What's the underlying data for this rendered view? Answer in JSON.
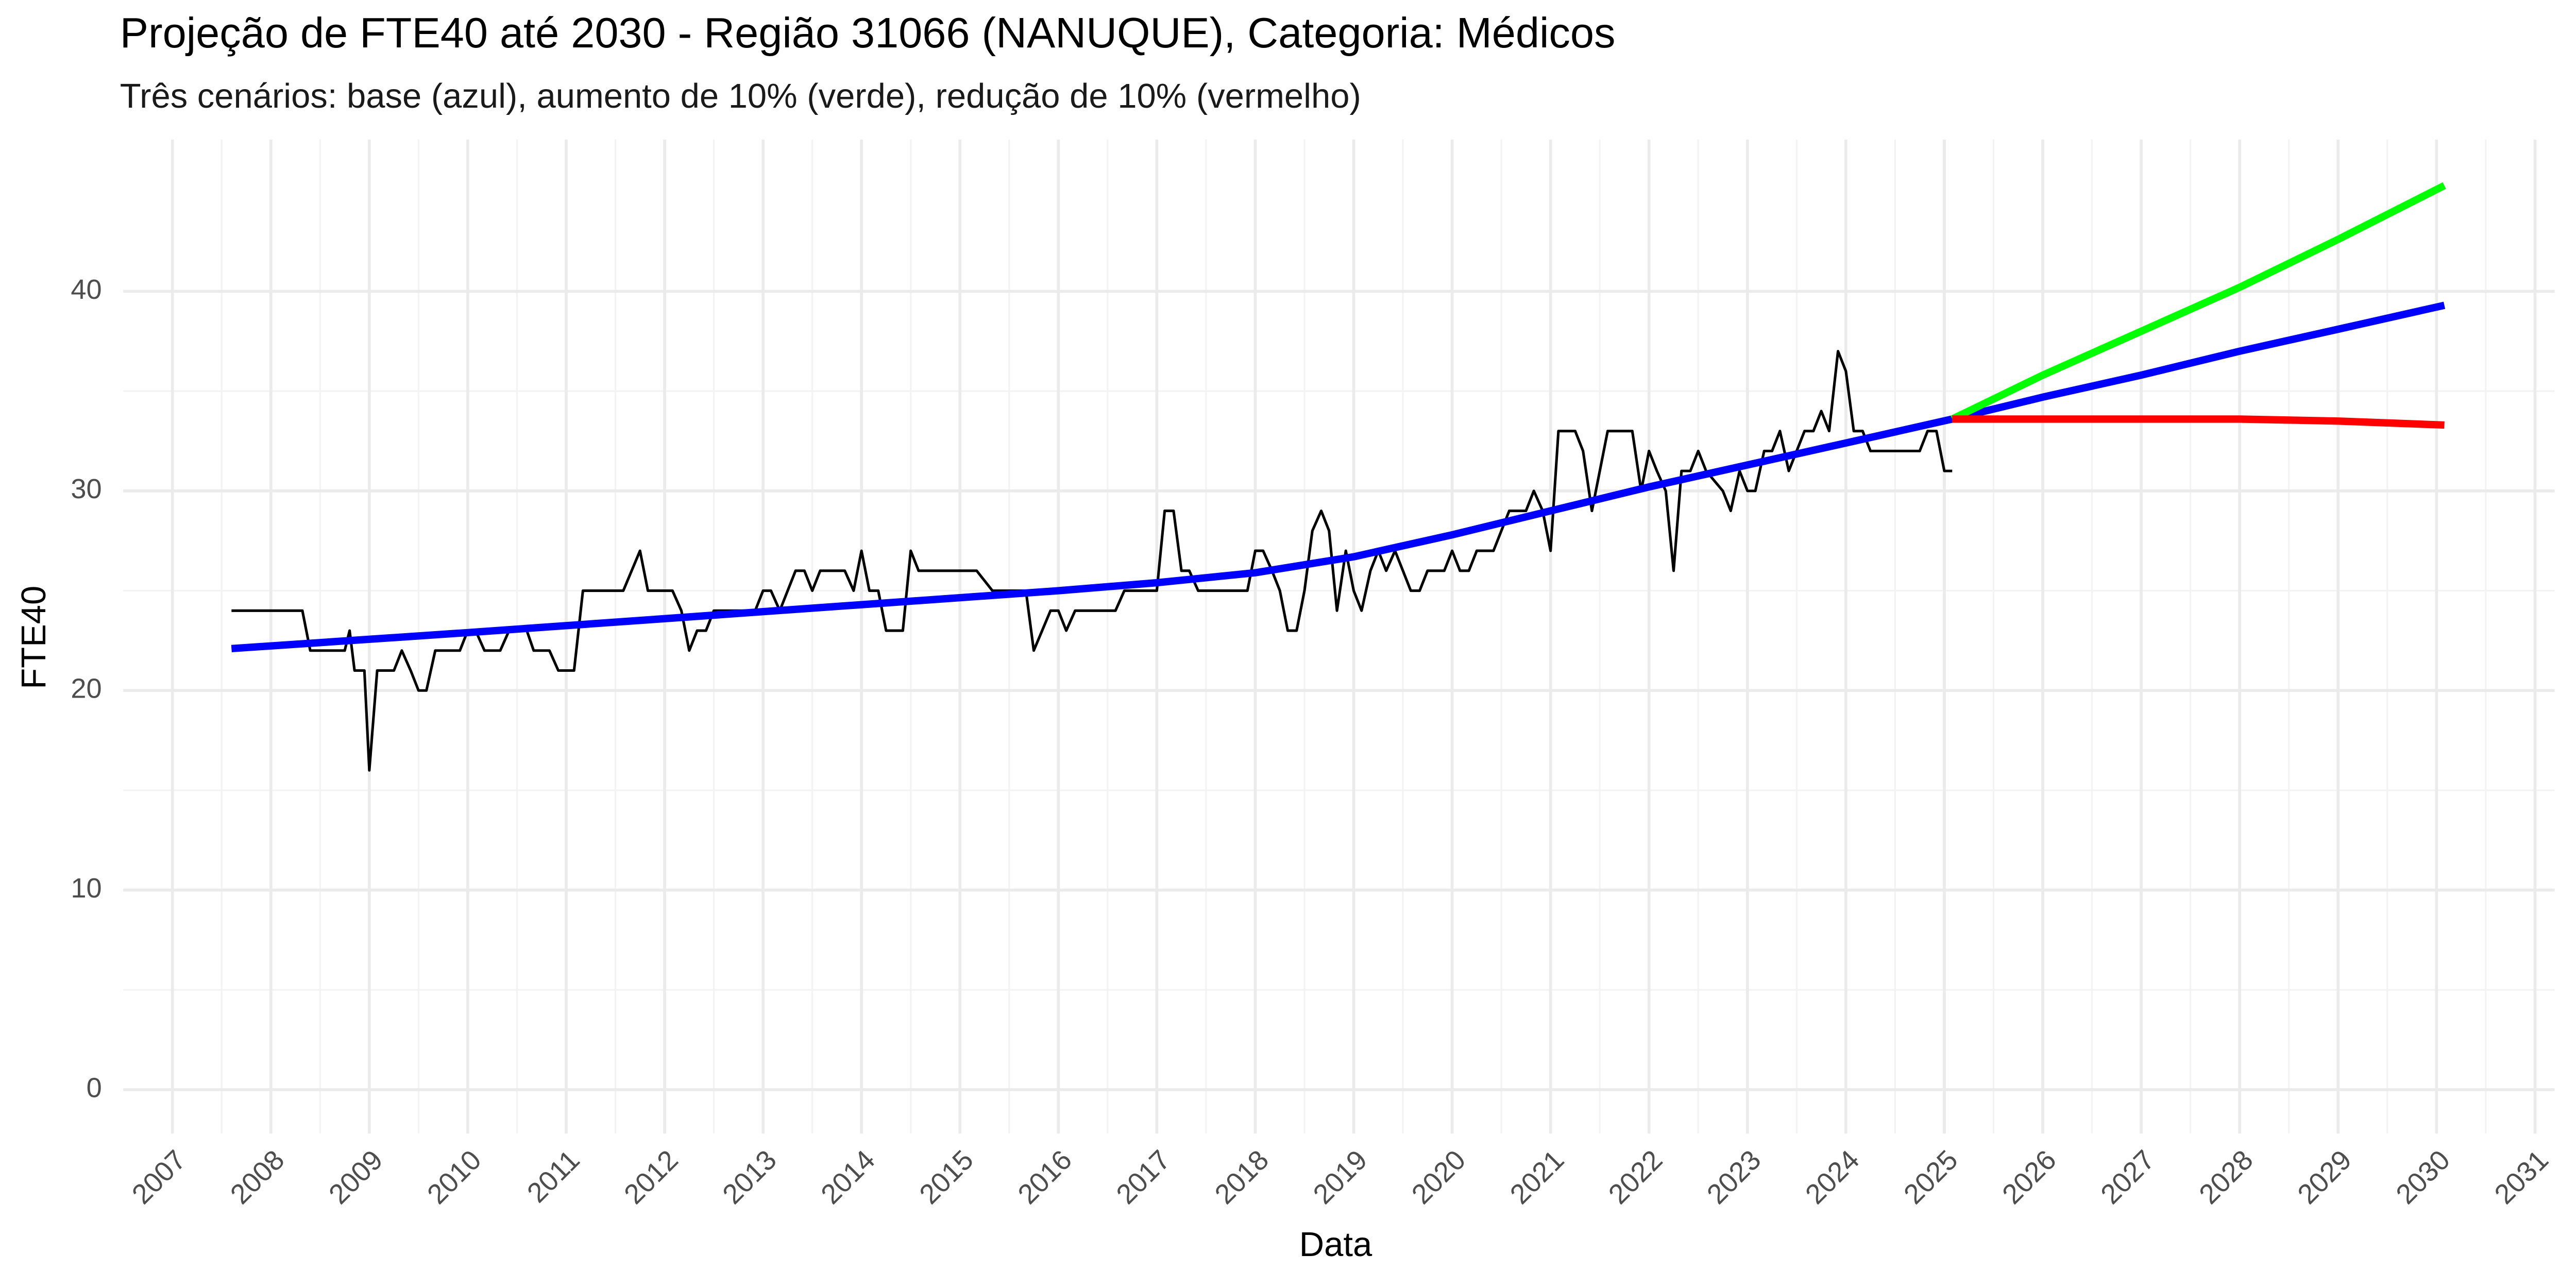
{
  "chart_data": {
    "type": "line",
    "title": "Projeção de FTE40 até 2030 - Região 31066 (NANUQUE), Categoria: Médicos",
    "subtitle": "Três cenários: base (azul), aumento de 10% (verde), redução de 10% (vermelho)",
    "x_label": "Data",
    "y_label": "FTE40",
    "xlim": [
      2006.5,
      2031.2
    ],
    "ylim": [
      -2.2,
      47.6
    ],
    "xticks": [
      2007,
      2008,
      2009,
      2010,
      2011,
      2012,
      2013,
      2014,
      2015,
      2016,
      2017,
      2018,
      2019,
      2020,
      2021,
      2022,
      2023,
      2024,
      2025,
      2026,
      2027,
      2028,
      2029,
      2030,
      2031
    ],
    "yticks": [
      0,
      10,
      20,
      30,
      40
    ],
    "grid": true,
    "series": [
      {
        "color": "#000000",
        "width": 1.6,
        "x": [
          2007.6,
          2008.32,
          2008.4,
          2008.75,
          2008.8,
          2008.85,
          2008.95,
          2009.0,
          2009.08,
          2009.25,
          2009.33,
          2009.42,
          2009.5,
          2009.58,
          2009.67,
          2009.92,
          2010.0,
          2010.08,
          2010.17,
          2010.33,
          2010.42,
          2010.6,
          2010.67,
          2010.83,
          2010.92,
          2011.08,
          2011.17,
          2011.58,
          2011.75,
          2011.83,
          2012.08,
          2012.17,
          2012.25,
          2012.33,
          2012.42,
          2012.5,
          2012.92,
          2013.0,
          2013.08,
          2013.17,
          2013.25,
          2013.33,
          2013.42,
          2013.5,
          2013.58,
          2013.83,
          2013.92,
          2014.0,
          2014.08,
          2014.17,
          2014.25,
          2014.42,
          2014.5,
          2014.58,
          2015.17,
          2015.33,
          2015.67,
          2015.75,
          2015.92,
          2016.0,
          2016.08,
          2016.17,
          2016.58,
          2016.67,
          2017.0,
          2017.08,
          2017.17,
          2017.25,
          2017.33,
          2017.42,
          2017.92,
          2018.0,
          2018.08,
          2018.17,
          2018.25,
          2018.33,
          2018.42,
          2018.5,
          2018.58,
          2018.67,
          2018.75,
          2018.83,
          2018.92,
          2019.0,
          2019.08,
          2019.17,
          2019.25,
          2019.33,
          2019.42,
          2019.5,
          2019.58,
          2019.67,
          2019.75,
          2019.92,
          2020.0,
          2020.08,
          2020.17,
          2020.25,
          2020.42,
          2020.5,
          2020.58,
          2020.75,
          2020.83,
          2020.92,
          2021.0,
          2021.08,
          2021.25,
          2021.33,
          2021.42,
          2021.5,
          2021.58,
          2021.83,
          2021.92,
          2022.0,
          2022.08,
          2022.17,
          2022.25,
          2022.33,
          2022.42,
          2022.5,
          2022.58,
          2022.75,
          2022.83,
          2022.92,
          2023.0,
          2023.08,
          2023.17,
          2023.25,
          2023.33,
          2023.42,
          2023.5,
          2023.58,
          2023.67,
          2023.75,
          2023.83,
          2023.92,
          2024.0,
          2024.08,
          2024.17,
          2024.25,
          2024.75,
          2024.83,
          2024.92,
          2025.0,
          2025.08
        ],
        "values": [
          24,
          24,
          22,
          22,
          23,
          21,
          21,
          16,
          21,
          21,
          22,
          21,
          20,
          20,
          22,
          22,
          23,
          23,
          22,
          22,
          23,
          23,
          22,
          22,
          21,
          21,
          25,
          25,
          27,
          25,
          25,
          24,
          22,
          23,
          23,
          24,
          24,
          25,
          25,
          24,
          25,
          26,
          26,
          25,
          26,
          26,
          25,
          27,
          25,
          25,
          23,
          23,
          27,
          26,
          26,
          25,
          25,
          22,
          24,
          24,
          23,
          24,
          24,
          25,
          25,
          29,
          29,
          26,
          26,
          25,
          25,
          27,
          27,
          26,
          25,
          23,
          23,
          25,
          28,
          29,
          28,
          24,
          27,
          25,
          24,
          26,
          27,
          26,
          27,
          26,
          25,
          25,
          26,
          26,
          27,
          26,
          26,
          27,
          27,
          28,
          29,
          29,
          30,
          29,
          27,
          33,
          33,
          32,
          29,
          31,
          33,
          33,
          30,
          32,
          31,
          30,
          26,
          31,
          31,
          32,
          31,
          30,
          29,
          31,
          30,
          30,
          32,
          32,
          33,
          31,
          32,
          33,
          33,
          34,
          33,
          37,
          36,
          33,
          33,
          32,
          32,
          33,
          33,
          31,
          31
        ]
      },
      {
        "color": "#0000ff",
        "width": 4.5,
        "x": [
          2007.6,
          2010,
          2012,
          2014,
          2016,
          2017,
          2018,
          2019,
          2020,
          2021,
          2022,
          2023,
          2024,
          2025.08,
          2026,
          2027,
          2028,
          2029,
          2030.08
        ],
        "values": [
          22.1,
          22.9,
          23.6,
          24.3,
          25.0,
          25.4,
          25.9,
          26.7,
          27.8,
          29.0,
          30.2,
          31.3,
          32.4,
          33.6,
          34.7,
          35.8,
          37.0,
          38.1,
          39.3
        ]
      },
      {
        "color": "#00ff00",
        "width": 4.5,
        "x": [
          2025.08,
          2026,
          2027,
          2028,
          2029,
          2030.08
        ],
        "values": [
          33.6,
          35.8,
          38.0,
          40.2,
          42.6,
          45.3
        ]
      },
      {
        "color": "#ff0000",
        "width": 4.5,
        "x": [
          2025.08,
          2026,
          2027,
          2028,
          2029,
          2030.08
        ],
        "values": [
          33.6,
          33.6,
          33.6,
          33.6,
          33.5,
          33.3
        ]
      }
    ]
  }
}
